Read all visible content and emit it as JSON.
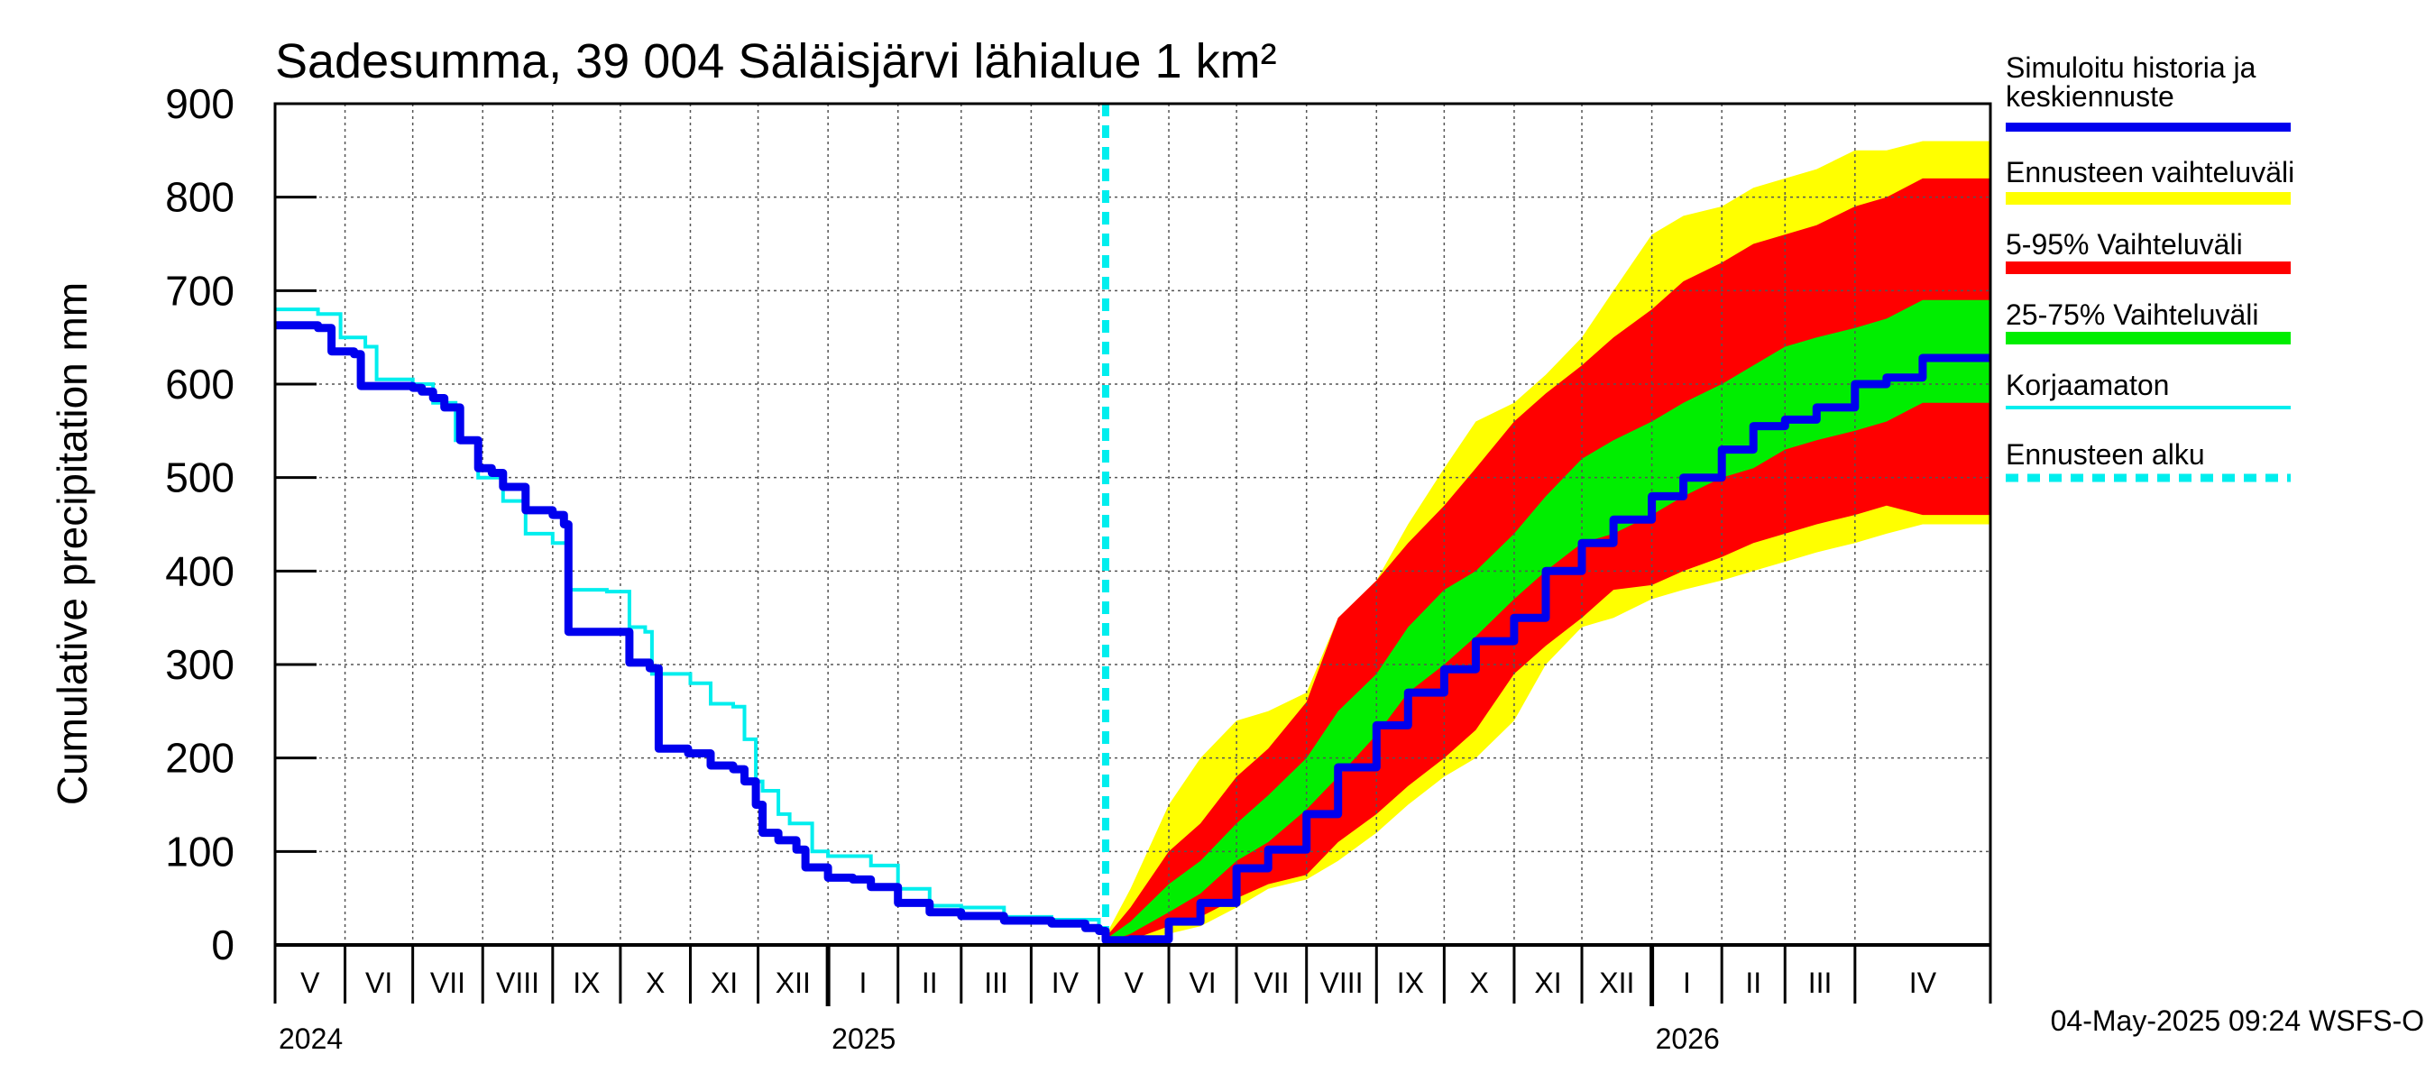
{
  "chart_data": {
    "type": "area",
    "title": "Sadesumma, 39 004 Säläisjärvi lähialue 1 km²",
    "ylabel": "Cumulative precipitation   mm",
    "ylim": [
      0,
      900
    ],
    "yticks": [
      0,
      100,
      200,
      300,
      400,
      500,
      600,
      700,
      800,
      900
    ],
    "x_range": [
      "2024-05-01",
      "2026-05-31"
    ],
    "forecast_start": "2025-05-04",
    "grid": true,
    "legend_position": "right",
    "month_labels": [
      "V",
      "VI",
      "VII",
      "VIII",
      "IX",
      "X",
      "XI",
      "XII",
      "I",
      "II",
      "III",
      "IV",
      "V",
      "VI",
      "VII",
      "VIII",
      "IX",
      "X",
      "XI",
      "XII",
      "I",
      "II",
      "III",
      "IV"
    ],
    "year_labels": [
      "2024",
      "2025",
      "2026"
    ],
    "footer": "04-May-2025 09:24 WSFS-O",
    "colors": {
      "history": "#0000ee",
      "uncorrected": "#00eeee",
      "range": "#ffff00",
      "p5_95": "#ff0000",
      "p25_75": "#00ee00",
      "forecast_start": "#00eeee"
    },
    "legend": [
      {
        "label": "Simuloitu historia ja keskiennuste",
        "color": "#0000ee",
        "style": "thick"
      },
      {
        "label": "Ennusteen vaihteluväli",
        "color": "#ffff00",
        "style": "band"
      },
      {
        "label": "5-95% Vaihteluväli",
        "color": "#ff0000",
        "style": "band"
      },
      {
        "label": "25-75% Vaihteluväli",
        "color": "#00ee00",
        "style": "band"
      },
      {
        "label": "Korjaamaton",
        "color": "#00eeee",
        "style": "thin"
      },
      {
        "label": "Ennusteen alku",
        "color": "#00eeee",
        "style": "dashed"
      }
    ],
    "series": [
      {
        "name": "Simuloitu historia ja keskiennuste",
        "points": [
          [
            "2024-05-01",
            663
          ],
          [
            "2024-05-20",
            660
          ],
          [
            "2024-05-26",
            635
          ],
          [
            "2024-06-05",
            632
          ],
          [
            "2024-06-08",
            598
          ],
          [
            "2024-07-01",
            596
          ],
          [
            "2024-07-05",
            592
          ],
          [
            "2024-07-10",
            585
          ],
          [
            "2024-07-15",
            575
          ],
          [
            "2024-07-22",
            540
          ],
          [
            "2024-07-30",
            510
          ],
          [
            "2024-08-05",
            505
          ],
          [
            "2024-08-10",
            490
          ],
          [
            "2024-08-20",
            465
          ],
          [
            "2024-09-01",
            460
          ],
          [
            "2024-09-06",
            450
          ],
          [
            "2024-09-08",
            335
          ],
          [
            "2024-10-01",
            335
          ],
          [
            "2024-10-05",
            302
          ],
          [
            "2024-10-14",
            296
          ],
          [
            "2024-10-18",
            210
          ],
          [
            "2024-10-31",
            205
          ],
          [
            "2024-11-10",
            192
          ],
          [
            "2024-11-20",
            188
          ],
          [
            "2024-11-25",
            175
          ],
          [
            "2024-11-30",
            150
          ],
          [
            "2024-12-03",
            120
          ],
          [
            "2024-12-10",
            112
          ],
          [
            "2024-12-18",
            102
          ],
          [
            "2024-12-22",
            83
          ],
          [
            "2025-01-01",
            72
          ],
          [
            "2025-01-12",
            70
          ],
          [
            "2025-01-20",
            62
          ],
          [
            "2025-02-01",
            45
          ],
          [
            "2025-02-15",
            35
          ],
          [
            "2025-03-01",
            31
          ],
          [
            "2025-03-20",
            26
          ],
          [
            "2025-04-10",
            23
          ],
          [
            "2025-04-25",
            18
          ],
          [
            "2025-05-01",
            15
          ],
          [
            "2025-05-04",
            5
          ],
          [
            "2025-05-15",
            6
          ],
          [
            "2025-06-01",
            25
          ],
          [
            "2025-06-15",
            45
          ],
          [
            "2025-07-01",
            82
          ],
          [
            "2025-07-15",
            102
          ],
          [
            "2025-08-01",
            140
          ],
          [
            "2025-08-15",
            190
          ],
          [
            "2025-09-01",
            235
          ],
          [
            "2025-09-15",
            270
          ],
          [
            "2025-10-01",
            295
          ],
          [
            "2025-10-15",
            325
          ],
          [
            "2025-11-01",
            350
          ],
          [
            "2025-11-15",
            400
          ],
          [
            "2025-12-01",
            430
          ],
          [
            "2025-12-15",
            455
          ],
          [
            "2026-01-01",
            480
          ],
          [
            "2026-01-15",
            500
          ],
          [
            "2026-02-01",
            530
          ],
          [
            "2026-02-15",
            555
          ],
          [
            "2026-03-01",
            562
          ],
          [
            "2026-03-15",
            575
          ],
          [
            "2026-04-01",
            600
          ],
          [
            "2026-04-15",
            607
          ],
          [
            "2026-05-01",
            628
          ],
          [
            "2026-05-31",
            628
          ]
        ]
      },
      {
        "name": "Korjaamaton",
        "points": [
          [
            "2024-05-01",
            680
          ],
          [
            "2024-05-20",
            675
          ],
          [
            "2024-05-30",
            650
          ],
          [
            "2024-06-10",
            640
          ],
          [
            "2024-06-15",
            605
          ],
          [
            "2024-07-01",
            600
          ],
          [
            "2024-07-10",
            580
          ],
          [
            "2024-07-20",
            540
          ],
          [
            "2024-07-30",
            500
          ],
          [
            "2024-08-10",
            475
          ],
          [
            "2024-08-20",
            440
          ],
          [
            "2024-09-01",
            430
          ],
          [
            "2024-09-08",
            380
          ],
          [
            "2024-09-25",
            378
          ],
          [
            "2024-10-05",
            340
          ],
          [
            "2024-10-12",
            335
          ],
          [
            "2024-10-15",
            290
          ],
          [
            "2024-11-01",
            280
          ],
          [
            "2024-11-10",
            258
          ],
          [
            "2024-11-20",
            255
          ],
          [
            "2024-11-25",
            220
          ],
          [
            "2024-11-30",
            175
          ],
          [
            "2024-12-03",
            165
          ],
          [
            "2024-12-10",
            140
          ],
          [
            "2024-12-15",
            130
          ],
          [
            "2024-12-25",
            100
          ],
          [
            "2025-01-01",
            95
          ],
          [
            "2025-01-20",
            85
          ],
          [
            "2025-02-01",
            60
          ],
          [
            "2025-02-15",
            42
          ],
          [
            "2025-03-01",
            40
          ],
          [
            "2025-03-20",
            30
          ],
          [
            "2025-04-10",
            27
          ],
          [
            "2025-05-01",
            18
          ],
          [
            "2025-05-04",
            15
          ]
        ]
      }
    ],
    "bands": {
      "x": [
        "2025-05-04",
        "2025-05-15",
        "2025-06-01",
        "2025-06-15",
        "2025-07-01",
        "2025-07-15",
        "2025-08-01",
        "2025-08-15",
        "2025-09-01",
        "2025-09-15",
        "2025-10-01",
        "2025-10-15",
        "2025-11-01",
        "2025-11-15",
        "2025-12-01",
        "2025-12-15",
        "2026-01-01",
        "2026-01-15",
        "2026-02-01",
        "2026-02-15",
        "2026-03-01",
        "2026-03-15",
        "2026-04-01",
        "2026-04-15",
        "2026-05-01",
        "2026-05-31"
      ],
      "range_low": [
        0,
        3,
        12,
        20,
        40,
        60,
        70,
        90,
        120,
        150,
        180,
        200,
        240,
        300,
        340,
        350,
        370,
        380,
        390,
        400,
        410,
        420,
        430,
        440,
        450,
        450
      ],
      "range_high": [
        10,
        60,
        150,
        200,
        240,
        250,
        270,
        350,
        390,
        450,
        510,
        560,
        580,
        610,
        650,
        700,
        760,
        780,
        790,
        810,
        820,
        830,
        850,
        850,
        860,
        860
      ],
      "p5_low": [
        0,
        5,
        20,
        30,
        50,
        65,
        75,
        110,
        140,
        170,
        200,
        230,
        290,
        320,
        350,
        380,
        385,
        400,
        415,
        430,
        440,
        450,
        460,
        470,
        460,
        460
      ],
      "p5_high": [
        8,
        40,
        100,
        130,
        180,
        210,
        260,
        350,
        390,
        430,
        470,
        510,
        560,
        590,
        620,
        650,
        680,
        710,
        730,
        750,
        760,
        770,
        790,
        800,
        820,
        820
      ],
      "p25_low": [
        2,
        12,
        35,
        55,
        90,
        110,
        145,
        180,
        225,
        270,
        300,
        330,
        370,
        400,
        430,
        440,
        460,
        480,
        500,
        510,
        530,
        540,
        550,
        560,
        580,
        580
      ],
      "p25_high": [
        6,
        25,
        65,
        90,
        130,
        160,
        200,
        250,
        290,
        340,
        380,
        400,
        440,
        480,
        520,
        540,
        560,
        580,
        600,
        620,
        640,
        650,
        660,
        670,
        690,
        690
      ]
    }
  }
}
